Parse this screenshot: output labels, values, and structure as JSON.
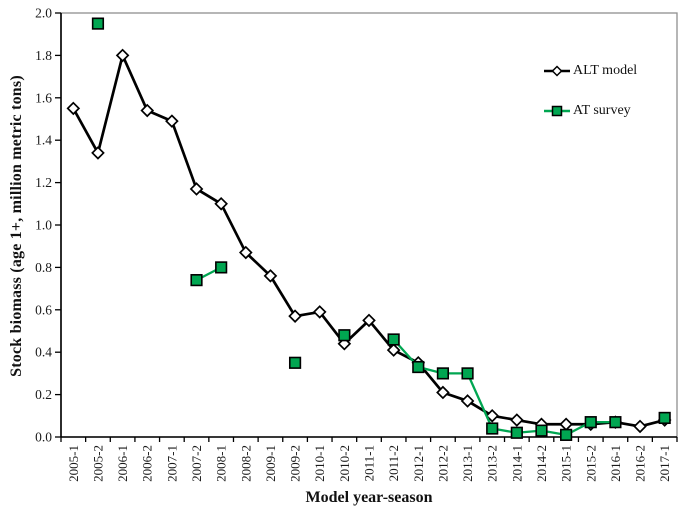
{
  "chart_data": {
    "type": "line",
    "title": "",
    "xlabel": "Model year-season",
    "ylabel": "Stock biomass (age 1+, million metric tons)",
    "ylim": [
      0.0,
      2.0
    ],
    "y_tick_labels": [
      "0.0",
      "0.2",
      "0.4",
      "0.6",
      "0.8",
      "1.0",
      "1.2",
      "1.4",
      "1.6",
      "1.8",
      "2.0"
    ],
    "grid": false,
    "plot_border_color": "#8f8f8f",
    "axis_color": "#000000",
    "legend": {
      "position": "inside-upper-right"
    },
    "categories": [
      "2005-1",
      "2005-2",
      "2006-1",
      "2006-2",
      "2007-1",
      "2007-2",
      "2008-1",
      "2008-2",
      "2009-1",
      "2009-2",
      "2010-1",
      "2010-2",
      "2011-1",
      "2011-2",
      "2012-1",
      "2012-2",
      "2013-1",
      "2013-2",
      "2014-1",
      "2014-2",
      "2015-1",
      "2015-2",
      "2016-1",
      "2016-2",
      "2017-1"
    ],
    "series": [
      {
        "name": "ALT model",
        "marker": "diamond",
        "color": "#000000",
        "marker_fill": "#ffffff",
        "values": [
          1.55,
          1.34,
          1.8,
          1.54,
          1.49,
          1.17,
          1.1,
          0.87,
          0.76,
          0.57,
          0.59,
          0.44,
          0.55,
          0.41,
          0.35,
          0.21,
          0.17,
          0.1,
          0.08,
          0.06,
          0.06,
          0.06,
          0.07,
          0.05,
          0.08
        ]
      },
      {
        "name": "AT survey",
        "marker": "square",
        "color": "#00A651",
        "marker_fill": "#00A651",
        "values": [
          null,
          1.95,
          null,
          null,
          null,
          0.74,
          0.8,
          null,
          null,
          0.35,
          null,
          0.48,
          null,
          0.46,
          0.33,
          0.3,
          0.3,
          0.04,
          0.02,
          0.03,
          0.01,
          0.07,
          0.07,
          null,
          0.09
        ]
      }
    ]
  }
}
